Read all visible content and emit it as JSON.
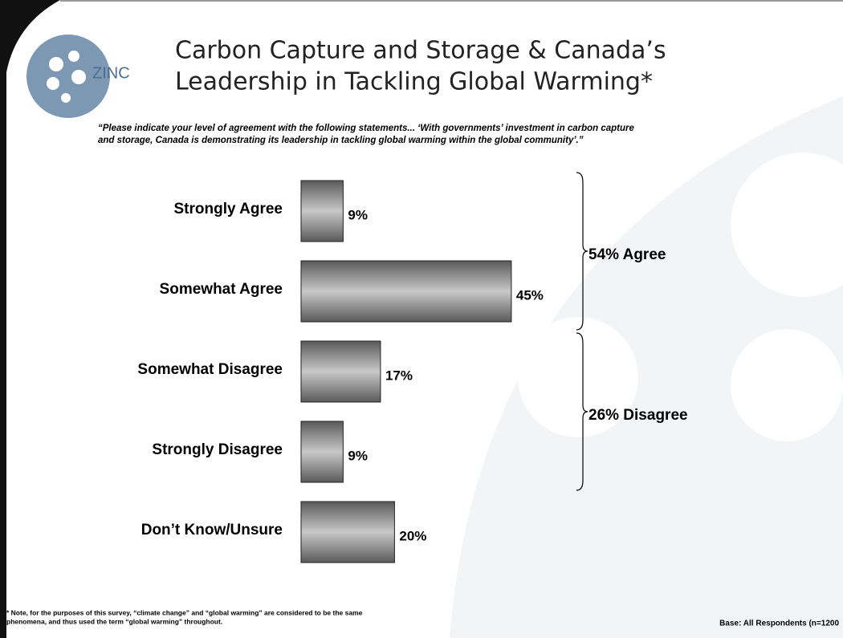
{
  "chart_data": {
    "type": "hbar",
    "logo": "ZINC",
    "title": [
      "Carbon Capture and Storage & Canada’s",
      "Leadership in Tackling Global Warming*"
    ],
    "subtitle": [
      "“Please indicate your level of agreement with the following statements... ‘With governments’ investment in carbon capture",
      "and storage, Canada is demonstrating its leadership in tackling global warming within the global community’.”"
    ],
    "categories": [
      "Strongly Agree",
      "Somewhat Agree",
      "Somewhat Disagree",
      "Strongly Disagree",
      "Don’t Know/Unsure"
    ],
    "values": [
      9,
      45,
      17,
      9,
      20
    ],
    "value_labels": [
      "9%",
      "45%",
      "17%",
      "9%",
      "20%"
    ],
    "annotations": [
      "54% Agree",
      "26% Disagree"
    ],
    "footnote": [
      "* Note, for the purposes of this survey, “climate change” and “global warming” are considered to be the same",
      "phenomena, and thus used the term “global warming” throughout."
    ],
    "base": "Base: All Respondents (n=1200"
  }
}
